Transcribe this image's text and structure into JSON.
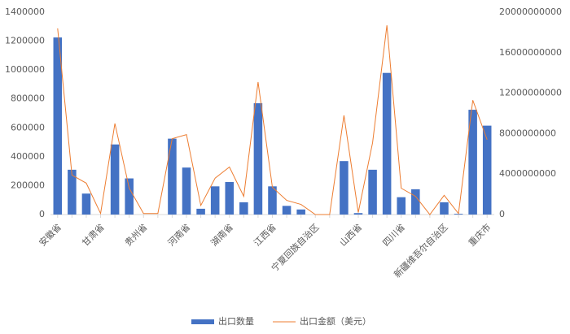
{
  "chart_data": {
    "type": "bar-line",
    "categories": [
      "安徽省",
      null,
      null,
      "甘肃省",
      null,
      null,
      "贵州省",
      null,
      null,
      "河南省",
      null,
      null,
      "湖南省",
      null,
      null,
      "江西省",
      null,
      null,
      "宁夏回族自治区",
      null,
      null,
      "山西省",
      null,
      null,
      "四川省",
      null,
      null,
      "新疆维吾尔自治区",
      null,
      null,
      "重庆市"
    ],
    "series": [
      {
        "name": "出口数量",
        "type": "bar",
        "color": "#4472c4",
        "values": [
          1225000,
          310000,
          145000,
          0,
          485000,
          250000,
          0,
          0,
          525000,
          325000,
          40000,
          195000,
          225000,
          85000,
          770000,
          195000,
          60000,
          35000,
          0,
          0,
          370000,
          10000,
          310000,
          980000,
          120000,
          175000,
          0,
          85000,
          5000,
          725000,
          615000
        ]
      },
      {
        "name": "出口金额（美元）",
        "type": "line",
        "color": "#ed7d31",
        "axis": "y2",
        "values": [
          18400000000,
          3900000000,
          3100000000,
          100000000,
          9000000000,
          2600000000,
          100000000,
          100000000,
          7500000000,
          7900000000,
          900000000,
          3600000000,
          4700000000,
          1800000000,
          13100000000,
          2700000000,
          1400000000,
          1000000000,
          0,
          0,
          9800000000,
          200000000,
          7100000000,
          18700000000,
          2600000000,
          1800000000,
          0,
          1900000000,
          100000000,
          11300000000,
          7400000000
        ]
      }
    ],
    "ylim": [
      0,
      1400000
    ],
    "yticks": [
      0,
      200000,
      400000,
      600000,
      800000,
      1000000,
      1200000,
      1400000
    ],
    "y2lim": [
      0,
      20000000000
    ],
    "y2ticks": [
      0,
      4000000000,
      8000000000,
      12000000000,
      16000000000,
      20000000000
    ],
    "legend": "bottom"
  }
}
